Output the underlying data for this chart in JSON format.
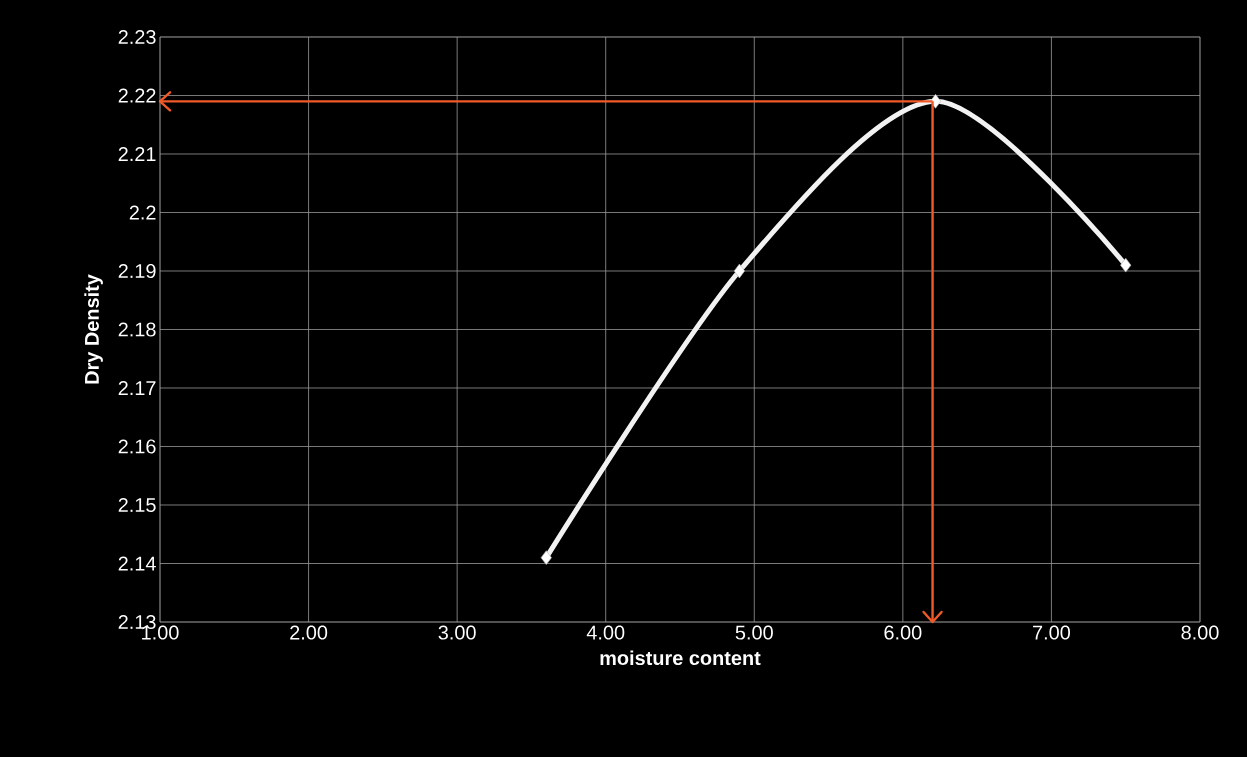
{
  "chart_data": {
    "type": "line",
    "xlabel": "moisture content",
    "ylabel": "Dry Density",
    "x": [
      3.6,
      4.9,
      6.22,
      7.5
    ],
    "series": [
      {
        "color": "#f2f2f2",
        "values": [
          2.141,
          2.19,
          2.219,
          2.191
        ]
      }
    ],
    "xlim": [
      1,
      8
    ],
    "ylim": [
      2.13,
      2.23
    ],
    "xticks": [
      {
        "value": 1,
        "label": "1.00"
      },
      {
        "value": 2,
        "label": "2.00"
      },
      {
        "value": 3,
        "label": "3.00"
      },
      {
        "value": 4,
        "label": "4.00"
      },
      {
        "value": 5,
        "label": "5.00"
      },
      {
        "value": 6,
        "label": "6.00"
      },
      {
        "value": 7,
        "label": "7.00"
      },
      {
        "value": 8,
        "label": "8.00"
      }
    ],
    "yticks": [
      2.13,
      2.14,
      2.15,
      2.16,
      2.17,
      2.18,
      2.19,
      2.2,
      2.21,
      2.22,
      2.23
    ],
    "ref_lines": [
      {
        "axis": "y",
        "value": 2.219,
        "color": "#f05a28"
      },
      {
        "axis": "x",
        "value": 6.2,
        "color": "#f05a28"
      }
    ],
    "grid": true,
    "marker": "diamond",
    "line_style": "solid"
  }
}
